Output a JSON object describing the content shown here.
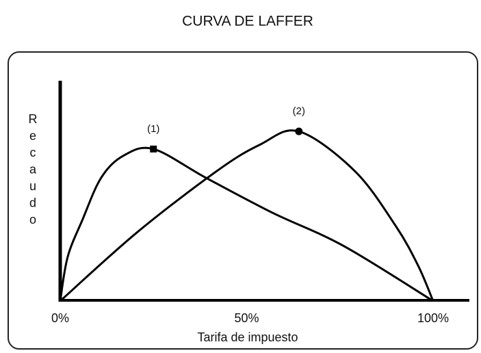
{
  "chart_data": {
    "type": "line",
    "title": "CURVA DE LAFFER",
    "xlabel": "Tarifa de impuesto",
    "ylabel": "Recaudo",
    "xlim": [
      0,
      100
    ],
    "ylim": [
      0,
      100
    ],
    "xticks": [
      {
        "value": 0,
        "label": "0%"
      },
      {
        "value": 50,
        "label": "50%"
      },
      {
        "value": 100,
        "label": "100%"
      }
    ],
    "series": [
      {
        "name": "(1)",
        "color": "#000000",
        "marker": "square",
        "x": [
          0,
          2,
          6,
          11,
          17,
          25,
          39,
          57,
          76,
          100
        ],
        "values": [
          0,
          20,
          37,
          56,
          66,
          69,
          56,
          40,
          25,
          0
        ]
      },
      {
        "name": "(2)",
        "color": "#000000",
        "marker": "circle",
        "x": [
          0,
          20.5,
          42,
          53.6,
          64,
          79,
          90,
          96,
          100
        ],
        "values": [
          0,
          31,
          59,
          71,
          77,
          59,
          34,
          16,
          0
        ]
      }
    ]
  }
}
